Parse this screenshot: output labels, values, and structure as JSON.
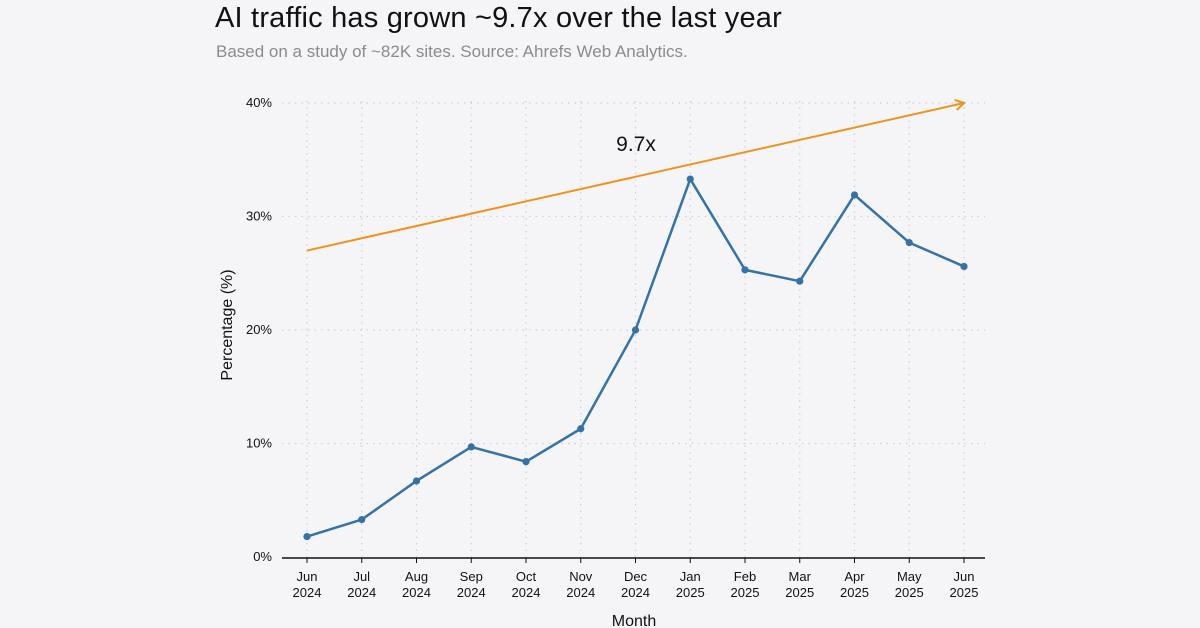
{
  "header": {
    "title": "AI traffic has grown ~9.7x over the last year",
    "subtitle": "Based on a study of ~82K sites. Source: Ahrefs Web Analytics."
  },
  "chart_data": {
    "type": "line",
    "title": "AI traffic has grown ~9.7x over the last year",
    "subtitle": "Based on a study of ~82K sites. Source: Ahrefs Web Analytics.",
    "xlabel": "Month",
    "ylabel": "Percentage (%)",
    "ylim": [
      0,
      40
    ],
    "yticks": [
      0,
      10,
      20,
      30,
      40
    ],
    "ytick_labels": [
      "0%",
      "10%",
      "20%",
      "30%",
      "40%"
    ],
    "categories": [
      [
        "Jun",
        "2024"
      ],
      [
        "Jul",
        "2024"
      ],
      [
        "Aug",
        "2024"
      ],
      [
        "Sep",
        "2024"
      ],
      [
        "Oct",
        "2024"
      ],
      [
        "Nov",
        "2024"
      ],
      [
        "Dec",
        "2024"
      ],
      [
        "Jan",
        "2025"
      ],
      [
        "Feb",
        "2025"
      ],
      [
        "Mar",
        "2025"
      ],
      [
        "Apr",
        "2025"
      ],
      [
        "May",
        "2025"
      ],
      [
        "Jun",
        "2025"
      ]
    ],
    "series": [
      {
        "values": [
          1.8,
          3.3,
          6.7,
          9.7,
          8.4,
          11.3,
          20.0,
          33.3,
          25.3,
          24.3,
          31.9,
          27.7,
          25.6
        ]
      }
    ],
    "trend_arrow": {
      "start": 27.0,
      "end": 40.0
    },
    "annotation": {
      "text": "9.7x"
    },
    "grid": true,
    "legend": "none",
    "colors": {
      "line": "#3572a5",
      "trend": "#f0931e",
      "grid": "#cfcfd4",
      "axis": "#111111"
    }
  }
}
